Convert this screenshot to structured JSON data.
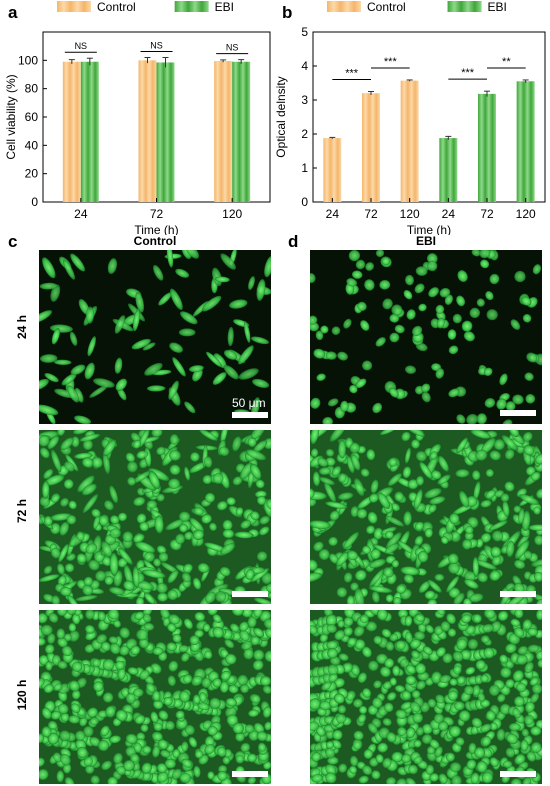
{
  "chart_data": [
    {
      "panel": "a",
      "type": "bar",
      "xlabel": "Time (h)",
      "ylabel": "Cell viability (%)",
      "ylim": [
        0,
        120
      ],
      "yticks": [
        0,
        20,
        40,
        60,
        80,
        100
      ],
      "categories": [
        "24",
        "72",
        "120"
      ],
      "series": [
        {
          "name": "Control",
          "values": [
            99,
            100,
            99.5
          ],
          "errors": [
            1.5,
            2.0,
            0.8
          ]
        },
        {
          "name": "EBI",
          "values": [
            99,
            98.5,
            99
          ],
          "errors": [
            2.5,
            3.5,
            1.5
          ]
        }
      ],
      "significance": [
        {
          "group": 0,
          "label": "NS"
        },
        {
          "group": 1,
          "label": "NS"
        },
        {
          "group": 2,
          "label": "NS"
        }
      ],
      "legend": "top"
    },
    {
      "panel": "b",
      "type": "bar",
      "xlabel": "Time (h)",
      "ylabel": "Optical delnsity",
      "ylim": [
        0,
        5
      ],
      "yticks": [
        0,
        1,
        2,
        3,
        4,
        5
      ],
      "categories": [
        "24",
        "72",
        "120",
        "24",
        "72",
        "120"
      ],
      "series": [
        {
          "name": "Control",
          "values": [
            1.88,
            3.2,
            3.57,
            null,
            null,
            null
          ],
          "errors": [
            0.02,
            0.05,
            0.02,
            null,
            null,
            null
          ]
        },
        {
          "name": "EBI",
          "values": [
            null,
            null,
            null,
            1.88,
            3.18,
            3.55
          ],
          "errors": [
            null,
            null,
            null,
            0.05,
            0.08,
            0.04
          ]
        }
      ],
      "significance": [
        {
          "from": 0,
          "to": 1,
          "label": "***"
        },
        {
          "from": 1,
          "to": 2,
          "label": "***"
        },
        {
          "from": 3,
          "to": 4,
          "label": "***"
        },
        {
          "from": 4,
          "to": 5,
          "label": "**"
        }
      ],
      "legend": "top"
    }
  ],
  "panels": {
    "a": "a",
    "b": "b",
    "c": "c",
    "d": "d"
  },
  "micrographs": {
    "col_titles": [
      "Control",
      "EBI"
    ],
    "row_labels": [
      "24 h",
      "72 h",
      "120 h"
    ],
    "scale_label": "50 μm"
  },
  "colors": {
    "control": "#f5b56a",
    "control_light": "#fcd9a8",
    "ebi": "#3fa63a",
    "ebi_light": "#8fd98a",
    "cell": "#3cc84a",
    "micro_bg": "#061206"
  }
}
